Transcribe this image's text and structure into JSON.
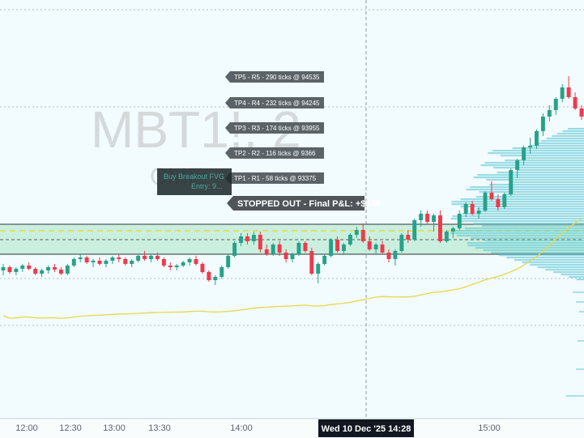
{
  "watermark": {
    "symbol": "MBT1!, 2",
    "subtitle": "CME"
  },
  "colors": {
    "background": "#f2fbfd",
    "up": "#26a28b",
    "down": "#ee3a4d",
    "ma": "#e6d84a",
    "zone": "#c4ecd8",
    "profile": "#5ec8d6",
    "label_bg": "#5a6367",
    "pnl_bg": "#4f5558",
    "strategy_bg": "#1f2a2c"
  },
  "tp_labels": [
    {
      "text": "TP5 - R5 - 290 ticks @ 94535"
    },
    {
      "text": "TP4 - R4 - 232 ticks @ 94245"
    },
    {
      "text": "TP3 - R3 - 174 ticks @ 93955"
    },
    {
      "text": "TP2 - R2 - 116 ticks @ 9366"
    },
    {
      "text": "TP1 - R1 - 58 ticks @ 93375"
    }
  ],
  "strategy_label": {
    "line1": "Buy Breakout FVG",
    "line2": "Entry: 9..."
  },
  "pnl_label": {
    "text": "STOPPED OUT - Final P&L: +$348"
  },
  "time_axis": {
    "labels": [
      "12:00",
      "12:30",
      "13:00",
      "13:30",
      "14:00",
      "15:00"
    ],
    "crosshair": "Wed 10 Dec '25   14:28"
  },
  "chart_data": {
    "type": "candlestick",
    "title": "MBT1!, 2",
    "subtitle": "CME",
    "xlabel": "",
    "ylabel": "",
    "x": [
      "12:00",
      "12:30",
      "13:00",
      "13:30",
      "14:00",
      "14:28",
      "15:00"
    ],
    "ylim": [
      92300,
      94800
    ],
    "trade": {
      "direction": "long",
      "result": "STOPPED OUT",
      "final_pnl": "+$348",
      "tp_prices": [
        93375,
        9366,
        93955,
        94245,
        94535
      ],
      "tp_ticks": [
        58,
        116,
        174,
        232,
        290
      ]
    },
    "candles": [
      [
        93130,
        93170,
        93100,
        93150
      ],
      [
        93150,
        93160,
        93110,
        93120
      ],
      [
        93120,
        93150,
        93100,
        93140
      ],
      [
        93140,
        93170,
        93120,
        93160
      ],
      [
        93160,
        93180,
        93130,
        93140
      ],
      [
        93140,
        93150,
        93100,
        93110
      ],
      [
        93110,
        93140,
        93090,
        93130
      ],
      [
        93130,
        93160,
        93110,
        93150
      ],
      [
        93150,
        93170,
        93120,
        93135
      ],
      [
        93135,
        93150,
        93100,
        93110
      ],
      [
        93110,
        93170,
        93100,
        93160
      ],
      [
        93160,
        93210,
        93150,
        93200
      ],
      [
        93200,
        93230,
        93180,
        93210
      ],
      [
        93210,
        93220,
        93170,
        93180
      ],
      [
        93180,
        93200,
        93150,
        93190
      ],
      [
        93190,
        93210,
        93160,
        93170
      ],
      [
        93170,
        93200,
        93150,
        93190
      ],
      [
        93190,
        93220,
        93170,
        93210
      ],
      [
        93210,
        93230,
        93180,
        93200
      ],
      [
        93200,
        93210,
        93160,
        93170
      ],
      [
        93170,
        93200,
        93150,
        93190
      ],
      [
        93190,
        93230,
        93180,
        93220
      ],
      [
        93220,
        93250,
        93190,
        93200
      ],
      [
        93200,
        93230,
        93180,
        93220
      ],
      [
        93220,
        93240,
        93190,
        93200
      ],
      [
        93200,
        93210,
        93150,
        93160
      ],
      [
        93160,
        93180,
        93130,
        93150
      ],
      [
        93150,
        93170,
        93130,
        93160
      ],
      [
        93160,
        93190,
        93150,
        93180
      ],
      [
        93180,
        93210,
        93160,
        93200
      ],
      [
        93200,
        93220,
        93160,
        93170
      ],
      [
        93170,
        93180,
        93110,
        93120
      ],
      [
        93120,
        93130,
        93060,
        93070
      ],
      [
        93070,
        93100,
        93040,
        93090
      ],
      [
        93090,
        93160,
        93080,
        93150
      ],
      [
        93150,
        93230,
        93140,
        93220
      ],
      [
        93220,
        93310,
        93210,
        93300
      ],
      [
        93300,
        93360,
        93280,
        93340
      ],
      [
        93340,
        93360,
        93290,
        93310
      ],
      [
        93310,
        93370,
        93290,
        93350
      ],
      [
        93350,
        93370,
        93240,
        93260
      ],
      [
        93260,
        93290,
        93220,
        93230
      ],
      [
        93230,
        93300,
        93220,
        93290
      ],
      [
        93290,
        93310,
        93220,
        93240
      ],
      [
        93240,
        93260,
        93180,
        93200
      ],
      [
        93200,
        93240,
        93180,
        93230
      ],
      [
        93230,
        93310,
        93220,
        93300
      ],
      [
        93300,
        93310,
        93240,
        93250
      ],
      [
        93250,
        93270,
        93100,
        93110
      ],
      [
        93110,
        93180,
        93050,
        93170
      ],
      [
        93170,
        93230,
        93160,
        93220
      ],
      [
        93220,
        93330,
        93210,
        93320
      ],
      [
        93320,
        93340,
        93240,
        93250
      ],
      [
        93250,
        93300,
        93230,
        93290
      ],
      [
        93290,
        93360,
        93280,
        93350
      ],
      [
        93350,
        93400,
        93330,
        93380
      ],
      [
        93380,
        93420,
        93300,
        93310
      ],
      [
        93310,
        93340,
        93250,
        93260
      ],
      [
        93260,
        93300,
        93230,
        93290
      ],
      [
        93290,
        93310,
        93230,
        93240
      ],
      [
        93240,
        93260,
        93180,
        93200
      ],
      [
        93200,
        93260,
        93160,
        93250
      ],
      [
        93250,
        93360,
        93240,
        93350
      ],
      [
        93350,
        93380,
        93300,
        93320
      ],
      [
        93320,
        93450,
        93310,
        93440
      ],
      [
        93440,
        93500,
        93400,
        93480
      ],
      [
        93480,
        93500,
        93420,
        93430
      ],
      [
        93430,
        93480,
        93370,
        93470
      ],
      [
        93470,
        93500,
        93300,
        93310
      ],
      [
        93310,
        93380,
        93300,
        93370
      ],
      [
        93370,
        93400,
        93330,
        93390
      ],
      [
        93390,
        93500,
        93380,
        93480
      ],
      [
        93480,
        93550,
        93460,
        93540
      ],
      [
        93540,
        93560,
        93470,
        93480
      ],
      [
        93480,
        93520,
        93450,
        93500
      ],
      [
        93500,
        93620,
        93490,
        93610
      ],
      [
        93610,
        93680,
        93560,
        93570
      ],
      [
        93570,
        93600,
        93500,
        93520
      ],
      [
        93520,
        93610,
        93510,
        93600
      ],
      [
        93600,
        93760,
        93590,
        93750
      ],
      [
        93750,
        93820,
        93700,
        93810
      ],
      [
        93810,
        93900,
        93780,
        93890
      ],
      [
        93890,
        93950,
        93850,
        93900
      ],
      [
        93900,
        94000,
        93880,
        93990
      ],
      [
        93990,
        94100,
        93960,
        94080
      ],
      [
        94080,
        94150,
        94050,
        94120
      ],
      [
        94120,
        94200,
        94090,
        94190
      ],
      [
        94190,
        94280,
        94170,
        94260
      ],
      [
        94260,
        94330,
        94190,
        94200
      ],
      [
        94200,
        94230,
        94120,
        94130
      ],
      [
        94130,
        94150,
        94060,
        94080
      ]
    ],
    "moving_average": "single yellow line, slowly rising"
  }
}
